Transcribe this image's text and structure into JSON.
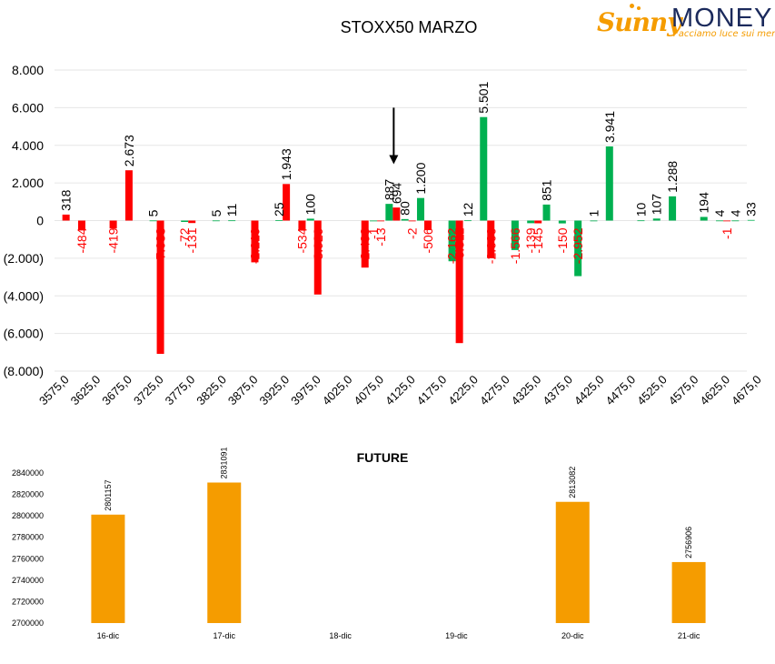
{
  "logo": {
    "brand_a": "Sunny",
    "brand_b": "MONEY",
    "tagline": "Facciamo luce sui mercati",
    "color_a": "#f59c00",
    "color_b": "#1b2a5c"
  },
  "colors": {
    "positive": "#00b050",
    "negative": "#ff0000",
    "future": "#f59c00",
    "text": "#000000",
    "grid": "#e6e6e6"
  },
  "chart_data": [
    {
      "type": "bar",
      "title": "STOXX50 MARZO",
      "ylim": [
        -8000,
        8000
      ],
      "yticks": [
        {
          "v": 8000,
          "label": "8.000"
        },
        {
          "v": 6000,
          "label": "6.000"
        },
        {
          "v": 4000,
          "label": "4.000"
        },
        {
          "v": 2000,
          "label": "2.000"
        },
        {
          "v": 0,
          "label": "0"
        },
        {
          "v": -2000,
          "label": "(2.000)"
        },
        {
          "v": -4000,
          "label": "(4.000)"
        },
        {
          "v": -6000,
          "label": "(6.000)"
        },
        {
          "v": -8000,
          "label": "(8.000)"
        }
      ],
      "xtick_labels": [
        "3575,0",
        "3625,0",
        "3675,0",
        "3725,0",
        "3775,0",
        "3825,0",
        "3875,0",
        "3925,0",
        "3975,0",
        "4025,0",
        "4075,0",
        "4125,0",
        "4175,0",
        "4225,0",
        "4275,0",
        "4325,0",
        "4375,0",
        "4425,0",
        "4475,0",
        "4525,0",
        "4575,0",
        "4625,0",
        "4675,0"
      ],
      "grid": true,
      "marker": {
        "x": 4100,
        "from": 6000,
        "to": 3000
      },
      "series": [
        {
          "color": "green",
          "points": [
            {
              "x": 3725,
              "v": 5,
              "label": "5"
            },
            {
              "x": 3775,
              "v": -72,
              "label": "-72"
            },
            {
              "x": 3825,
              "v": 5,
              "label": "5"
            },
            {
              "x": 3850,
              "v": 11,
              "label": "11"
            },
            {
              "x": 3925,
              "v": 25,
              "label": "25"
            },
            {
              "x": 3975,
              "v": 100,
              "label": "100"
            },
            {
              "x": 4075,
              "v": -1,
              "label": "-1"
            },
            {
              "x": 4100,
              "v": 887,
              "label": "887"
            },
            {
              "x": 4125,
              "v": 80,
              "label": "80"
            },
            {
              "x": 4150,
              "v": 1200,
              "label": "1.200"
            },
            {
              "x": 4200,
              "v": -2162,
              "label": "-2.162"
            },
            {
              "x": 4225,
              "v": 12,
              "label": "12"
            },
            {
              "x": 4250,
              "v": 5501,
              "label": "5.501"
            },
            {
              "x": 4300,
              "v": -1566,
              "label": "-1.566"
            },
            {
              "x": 4325,
              "v": -139,
              "label": "-139"
            },
            {
              "x": 4350,
              "v": 851,
              "label": "851"
            },
            {
              "x": 4375,
              "v": -150,
              "label": "-150"
            },
            {
              "x": 4400,
              "v": -2952,
              "label": "-2.952"
            },
            {
              "x": 4425,
              "v": 1,
              "label": "1"
            },
            {
              "x": 4450,
              "v": 3941,
              "label": "3.941"
            },
            {
              "x": 4500,
              "v": 10,
              "label": "10"
            },
            {
              "x": 4525,
              "v": 107,
              "label": "107"
            },
            {
              "x": 4550,
              "v": 1288,
              "label": "1.288"
            },
            {
              "x": 4600,
              "v": 194,
              "label": "194"
            },
            {
              "x": 4625,
              "v": 4,
              "label": "4"
            },
            {
              "x": 4650,
              "v": 4,
              "label": "4"
            },
            {
              "x": 4675,
              "v": 33,
              "label": "33"
            }
          ]
        },
        {
          "color": "red",
          "points": [
            {
              "x": 3575,
              "v": 318,
              "label": "318"
            },
            {
              "x": 3600,
              "v": -484,
              "label": "-484"
            },
            {
              "x": 3650,
              "v": -419,
              "label": "-419"
            },
            {
              "x": 3675,
              "v": 2673,
              "label": "2.673"
            },
            {
              "x": 3725,
              "v": -7083,
              "label": "-7.083"
            },
            {
              "x": 3775,
              "v": -131,
              "label": "-131"
            },
            {
              "x": 3875,
              "v": -2219,
              "label": "-2.219"
            },
            {
              "x": 3925,
              "v": 1943,
              "label": "1.943"
            },
            {
              "x": 3950,
              "v": -534,
              "label": "-534"
            },
            {
              "x": 3975,
              "v": -3929,
              "label": "-3.929"
            },
            {
              "x": 4050,
              "v": -2499,
              "label": "-2.499"
            },
            {
              "x": 4075,
              "v": -13,
              "label": "-13"
            },
            {
              "x": 4100,
              "v": 694,
              "label": "694"
            },
            {
              "x": 4125,
              "v": -2,
              "label": "-2"
            },
            {
              "x": 4150,
              "v": -506,
              "label": "-506"
            },
            {
              "x": 4200,
              "v": -6511,
              "label": "-6.511"
            },
            {
              "x": 4250,
              "v": -2000,
              "label": "-2.000"
            },
            {
              "x": 4325,
              "v": -145,
              "label": "-145"
            },
            {
              "x": 4625,
              "v": -1,
              "label": "-1"
            }
          ]
        }
      ]
    },
    {
      "type": "bar",
      "title": "FUTURE",
      "categories": [
        "16-dic",
        "17-dic",
        "18-dic",
        "19-dic",
        "20-dic",
        "21-dic"
      ],
      "values": [
        2801157,
        2831091,
        null,
        null,
        2813082,
        2756906
      ],
      "value_labels": [
        "2801157",
        "2831091",
        "",
        "",
        "2813082",
        "2756906"
      ],
      "ylim": [
        2700000,
        2840000
      ],
      "yticks": [
        {
          "v": 2840000,
          "label": "2840000"
        },
        {
          "v": 2820000,
          "label": "2820000"
        },
        {
          "v": 2800000,
          "label": "2800000"
        },
        {
          "v": 2780000,
          "label": "2780000"
        },
        {
          "v": 2760000,
          "label": "2760000"
        },
        {
          "v": 2740000,
          "label": "2740000"
        },
        {
          "v": 2720000,
          "label": "2720000"
        },
        {
          "v": 2700000,
          "label": "2700000"
        }
      ],
      "grid": false
    }
  ]
}
